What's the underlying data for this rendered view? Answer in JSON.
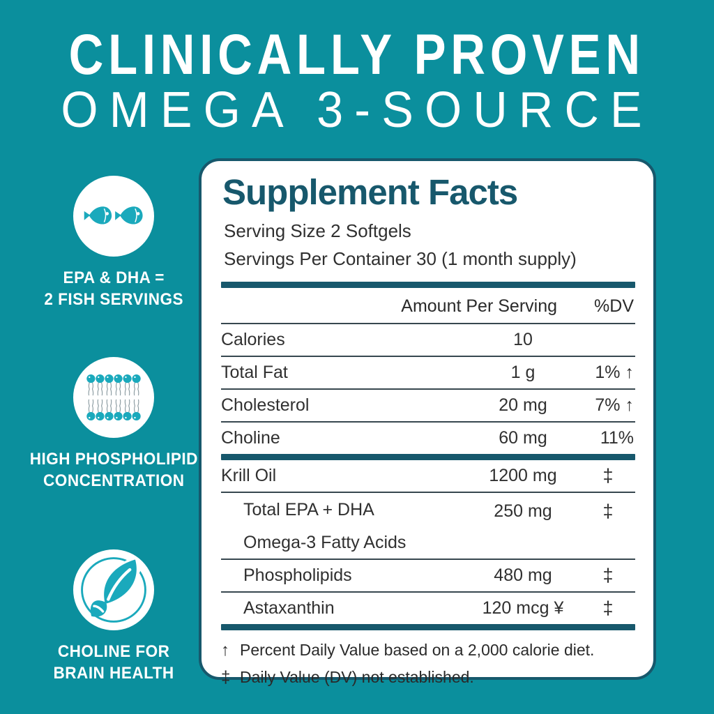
{
  "colors": {
    "bg": "#0b8f9d",
    "dark": "#17586c",
    "icon": "#1aa9bc",
    "line": "#37474f",
    "text": "#303030",
    "tail": "#8a9aa0"
  },
  "header": {
    "line1": "CLINICALLY PROVEN",
    "line2": "OMEGA 3-SOURCE"
  },
  "benefits": [
    {
      "icon": "fish-pair-icon",
      "label_lines": [
        "EPA & DHA =",
        "2 FISH SERVINGS"
      ]
    },
    {
      "icon": "phospholipid-bilayer-icon",
      "label_lines": [
        "HIGH PHOSPHOLIPID",
        "CONCENTRATION"
      ]
    },
    {
      "icon": "leaves-icon",
      "label_lines": [
        "CHOLINE FOR",
        "BRAIN HEALTH"
      ]
    }
  ],
  "facts_panel": {
    "title": "Supplement Facts",
    "serving_size": "Serving Size 2 Softgels",
    "servings_per_container": "Servings Per Container 30 (1 month supply)",
    "columns": {
      "amount": "Amount Per Serving",
      "dv": "%DV"
    },
    "rows": [
      {
        "name": "Calories",
        "amount": "10",
        "dv": "",
        "sep_after": "thin"
      },
      {
        "name": "Total Fat",
        "amount": "1 g",
        "dv": "1% ↑",
        "sep_after": "thin"
      },
      {
        "name": "Cholesterol",
        "amount": "20 mg",
        "dv": "7% ↑",
        "sep_after": "thin"
      },
      {
        "name": "Choline",
        "amount": "60 mg",
        "dv": "11%",
        "sep_after": "thick"
      },
      {
        "name": "Krill Oil",
        "amount": "1200 mg",
        "dv": "‡",
        "sep_after": "thin"
      },
      {
        "name": "Total EPA + DHA",
        "name2": "Omega-3 Fatty Acids",
        "amount": "250 mg",
        "dv": "‡",
        "indent": true,
        "sep_after": "thin"
      },
      {
        "name": "Phospholipids",
        "amount": "480 mg",
        "dv": "‡",
        "indent": true,
        "sep_after": "thin"
      },
      {
        "name": "Astaxanthin",
        "amount": "120 mcg ¥",
        "dv": "‡",
        "indent": true,
        "sep_after": "thick"
      }
    ],
    "footnotes": [
      {
        "symbol": "↑",
        "text": "Percent Daily Value based on a 2,000 calorie diet."
      },
      {
        "symbol": "‡",
        "text": "Daily Value (DV) not established."
      }
    ]
  }
}
